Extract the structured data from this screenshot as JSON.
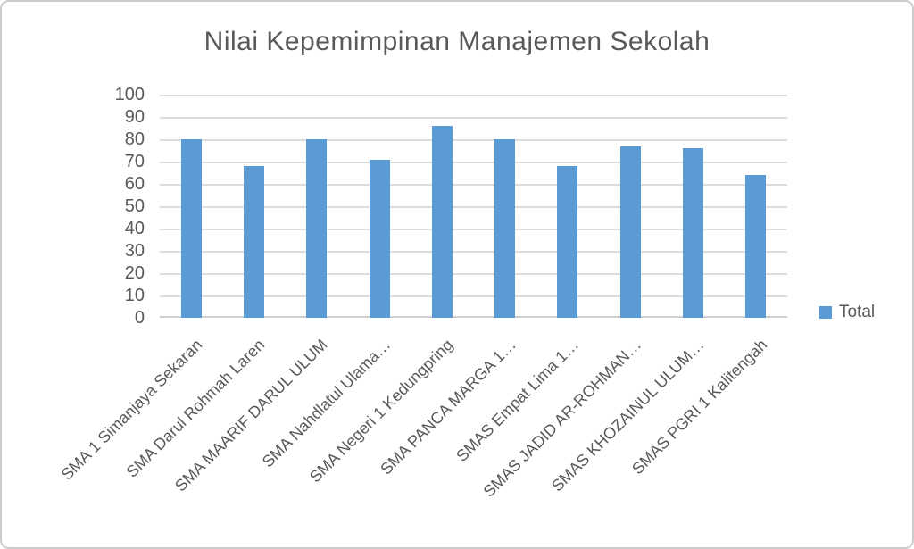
{
  "chart_data": {
    "type": "bar",
    "title": "Nilai Kepemimpinan Manajemen Sekolah",
    "categories": [
      "SMA 1 Simanjaya Sekaran",
      "SMA Darul Rohmah Laren",
      "SMA MAARIF DARUL ULUM",
      "SMA Nahdlatul Ulama…",
      "SMA Negeri 1 Kedungpring",
      "SMA PANCA MARGA 1…",
      "SMAS Empat Lima 1…",
      "SMAS JADID AR-ROHMAN…",
      "SMAS KHOZAINUL ULUM…",
      "SMAS PGRI 1 Kalitengah"
    ],
    "series": [
      {
        "name": "Total",
        "values": [
          80,
          68,
          80,
          71,
          86,
          80,
          68,
          77,
          76,
          64
        ]
      }
    ],
    "xlabel": "",
    "ylabel": "",
    "ylim": [
      0,
      100
    ],
    "yticks": [
      0,
      10,
      20,
      30,
      40,
      50,
      60,
      70,
      80,
      90,
      100
    ],
    "grid": true,
    "legend_position": "right",
    "x_label_rotation_deg": 45,
    "colors": {
      "bar": "#5b9bd5",
      "gridline": "#dcdcdc",
      "text": "#595959",
      "border": "#cdcdcd"
    }
  }
}
